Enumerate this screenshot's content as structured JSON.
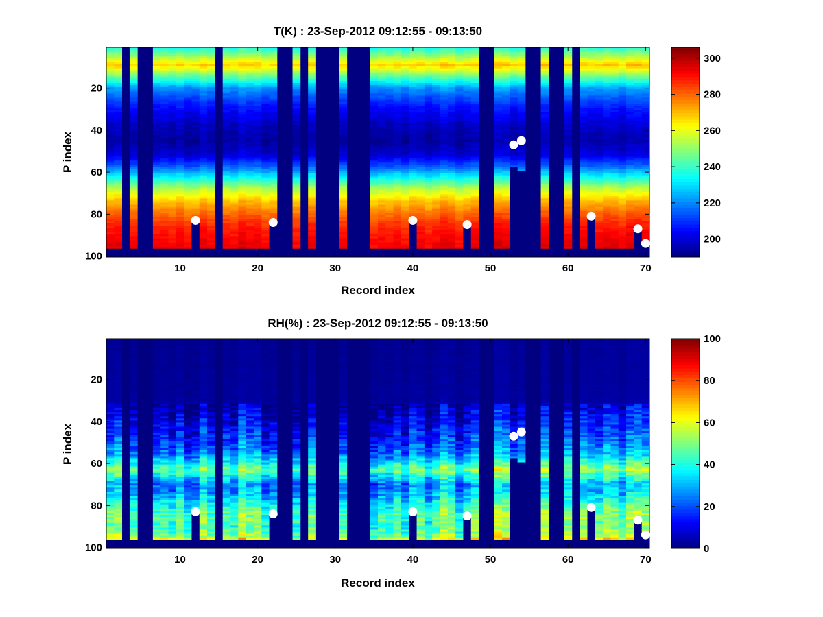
{
  "chart_data": [
    {
      "type": "heatmap",
      "variable": "T",
      "title": "T(K) : 23-Sep-2012 09:12:55 - 09:13:50",
      "xlabel": "Record index",
      "ylabel": "P index",
      "xlim": [
        0.5,
        70.5
      ],
      "ylim": [
        0.5,
        100.5
      ],
      "y_reversed": true,
      "x_ticks": [
        10,
        20,
        30,
        40,
        50,
        60,
        70
      ],
      "y_ticks": [
        20,
        40,
        60,
        80,
        100
      ],
      "colorbar": {
        "min": 190,
        "max": 306,
        "ticks": [
          200,
          220,
          240,
          260,
          280,
          300
        ],
        "colormap": "jet"
      },
      "missing_records": [
        3,
        5,
        6,
        15,
        23,
        24,
        26,
        28,
        29,
        30,
        32,
        33,
        34,
        49,
        50,
        55,
        56,
        58,
        59,
        61
      ],
      "partial_columns": [
        {
          "x": 12,
          "top": 83
        },
        {
          "x": 22,
          "top": 84
        },
        {
          "x": 40,
          "top": 83
        },
        {
          "x": 47,
          "top": 85
        },
        {
          "x": 53,
          "top": 58
        },
        {
          "x": 54,
          "top": 60
        },
        {
          "x": 63,
          "top": 81
        },
        {
          "x": 69,
          "top": 87
        },
        {
          "x": 70,
          "top": 94
        }
      ],
      "bottom_fill_start": 97,
      "profile": [
        [
          1,
          238
        ],
        [
          5,
          252
        ],
        [
          9,
          268
        ],
        [
          14,
          246
        ],
        [
          20,
          222
        ],
        [
          28,
          208
        ],
        [
          37,
          198
        ],
        [
          45,
          194
        ],
        [
          52,
          200
        ],
        [
          58,
          218
        ],
        [
          63,
          236
        ],
        [
          68,
          254
        ],
        [
          74,
          270
        ],
        [
          80,
          280
        ],
        [
          86,
          288
        ],
        [
          92,
          292
        ],
        [
          97,
          294
        ]
      ],
      "markers": [
        {
          "x": 12,
          "y": 83
        },
        {
          "x": 22,
          "y": 84
        },
        {
          "x": 40,
          "y": 83
        },
        {
          "x": 47,
          "y": 85
        },
        {
          "x": 53,
          "y": 47
        },
        {
          "x": 54,
          "y": 45
        },
        {
          "x": 63,
          "y": 81
        },
        {
          "x": 69,
          "y": 87
        },
        {
          "x": 70,
          "y": 94
        }
      ]
    },
    {
      "type": "heatmap",
      "variable": "RH",
      "title": "RH(%) : 23-Sep-2012 09:12:55 - 09:13:50",
      "xlabel": "Record index",
      "ylabel": "P index",
      "xlim": [
        0.5,
        70.5
      ],
      "ylim": [
        0.5,
        100.5
      ],
      "y_reversed": true,
      "x_ticks": [
        10,
        20,
        30,
        40,
        50,
        60,
        70
      ],
      "y_ticks": [
        20,
        40,
        60,
        80,
        100
      ],
      "colorbar": {
        "min": 0,
        "max": 100,
        "ticks": [
          0,
          20,
          40,
          60,
          80,
          100
        ],
        "colormap": "jet"
      },
      "missing_records": [
        3,
        5,
        6,
        15,
        23,
        24,
        26,
        28,
        29,
        30,
        32,
        33,
        34,
        49,
        50,
        55,
        56,
        58,
        59,
        61
      ],
      "partial_columns": [
        {
          "x": 12,
          "top": 83
        },
        {
          "x": 22,
          "top": 84
        },
        {
          "x": 40,
          "top": 83
        },
        {
          "x": 47,
          "top": 85
        },
        {
          "x": 53,
          "top": 58
        },
        {
          "x": 54,
          "top": 60
        },
        {
          "x": 63,
          "top": 81
        },
        {
          "x": 69,
          "top": 87
        },
        {
          "x": 70,
          "top": 94
        }
      ],
      "bottom_fill_start": 97,
      "profile": [
        [
          1,
          2
        ],
        [
          30,
          3
        ],
        [
          38,
          10
        ],
        [
          48,
          18
        ],
        [
          55,
          26
        ],
        [
          60,
          40
        ],
        [
          63,
          50
        ],
        [
          66,
          40
        ],
        [
          70,
          26
        ],
        [
          74,
          30
        ],
        [
          78,
          38
        ],
        [
          82,
          45
        ],
        [
          86,
          48
        ],
        [
          90,
          45
        ],
        [
          95,
          52
        ],
        [
          97,
          70
        ]
      ],
      "markers": [
        {
          "x": 12,
          "y": 83
        },
        {
          "x": 22,
          "y": 84
        },
        {
          "x": 40,
          "y": 83
        },
        {
          "x": 47,
          "y": 85
        },
        {
          "x": 53,
          "y": 47
        },
        {
          "x": 54,
          "y": 45
        },
        {
          "x": 63,
          "y": 81
        },
        {
          "x": 69,
          "y": 87
        },
        {
          "x": 70,
          "y": 94
        }
      ]
    }
  ]
}
